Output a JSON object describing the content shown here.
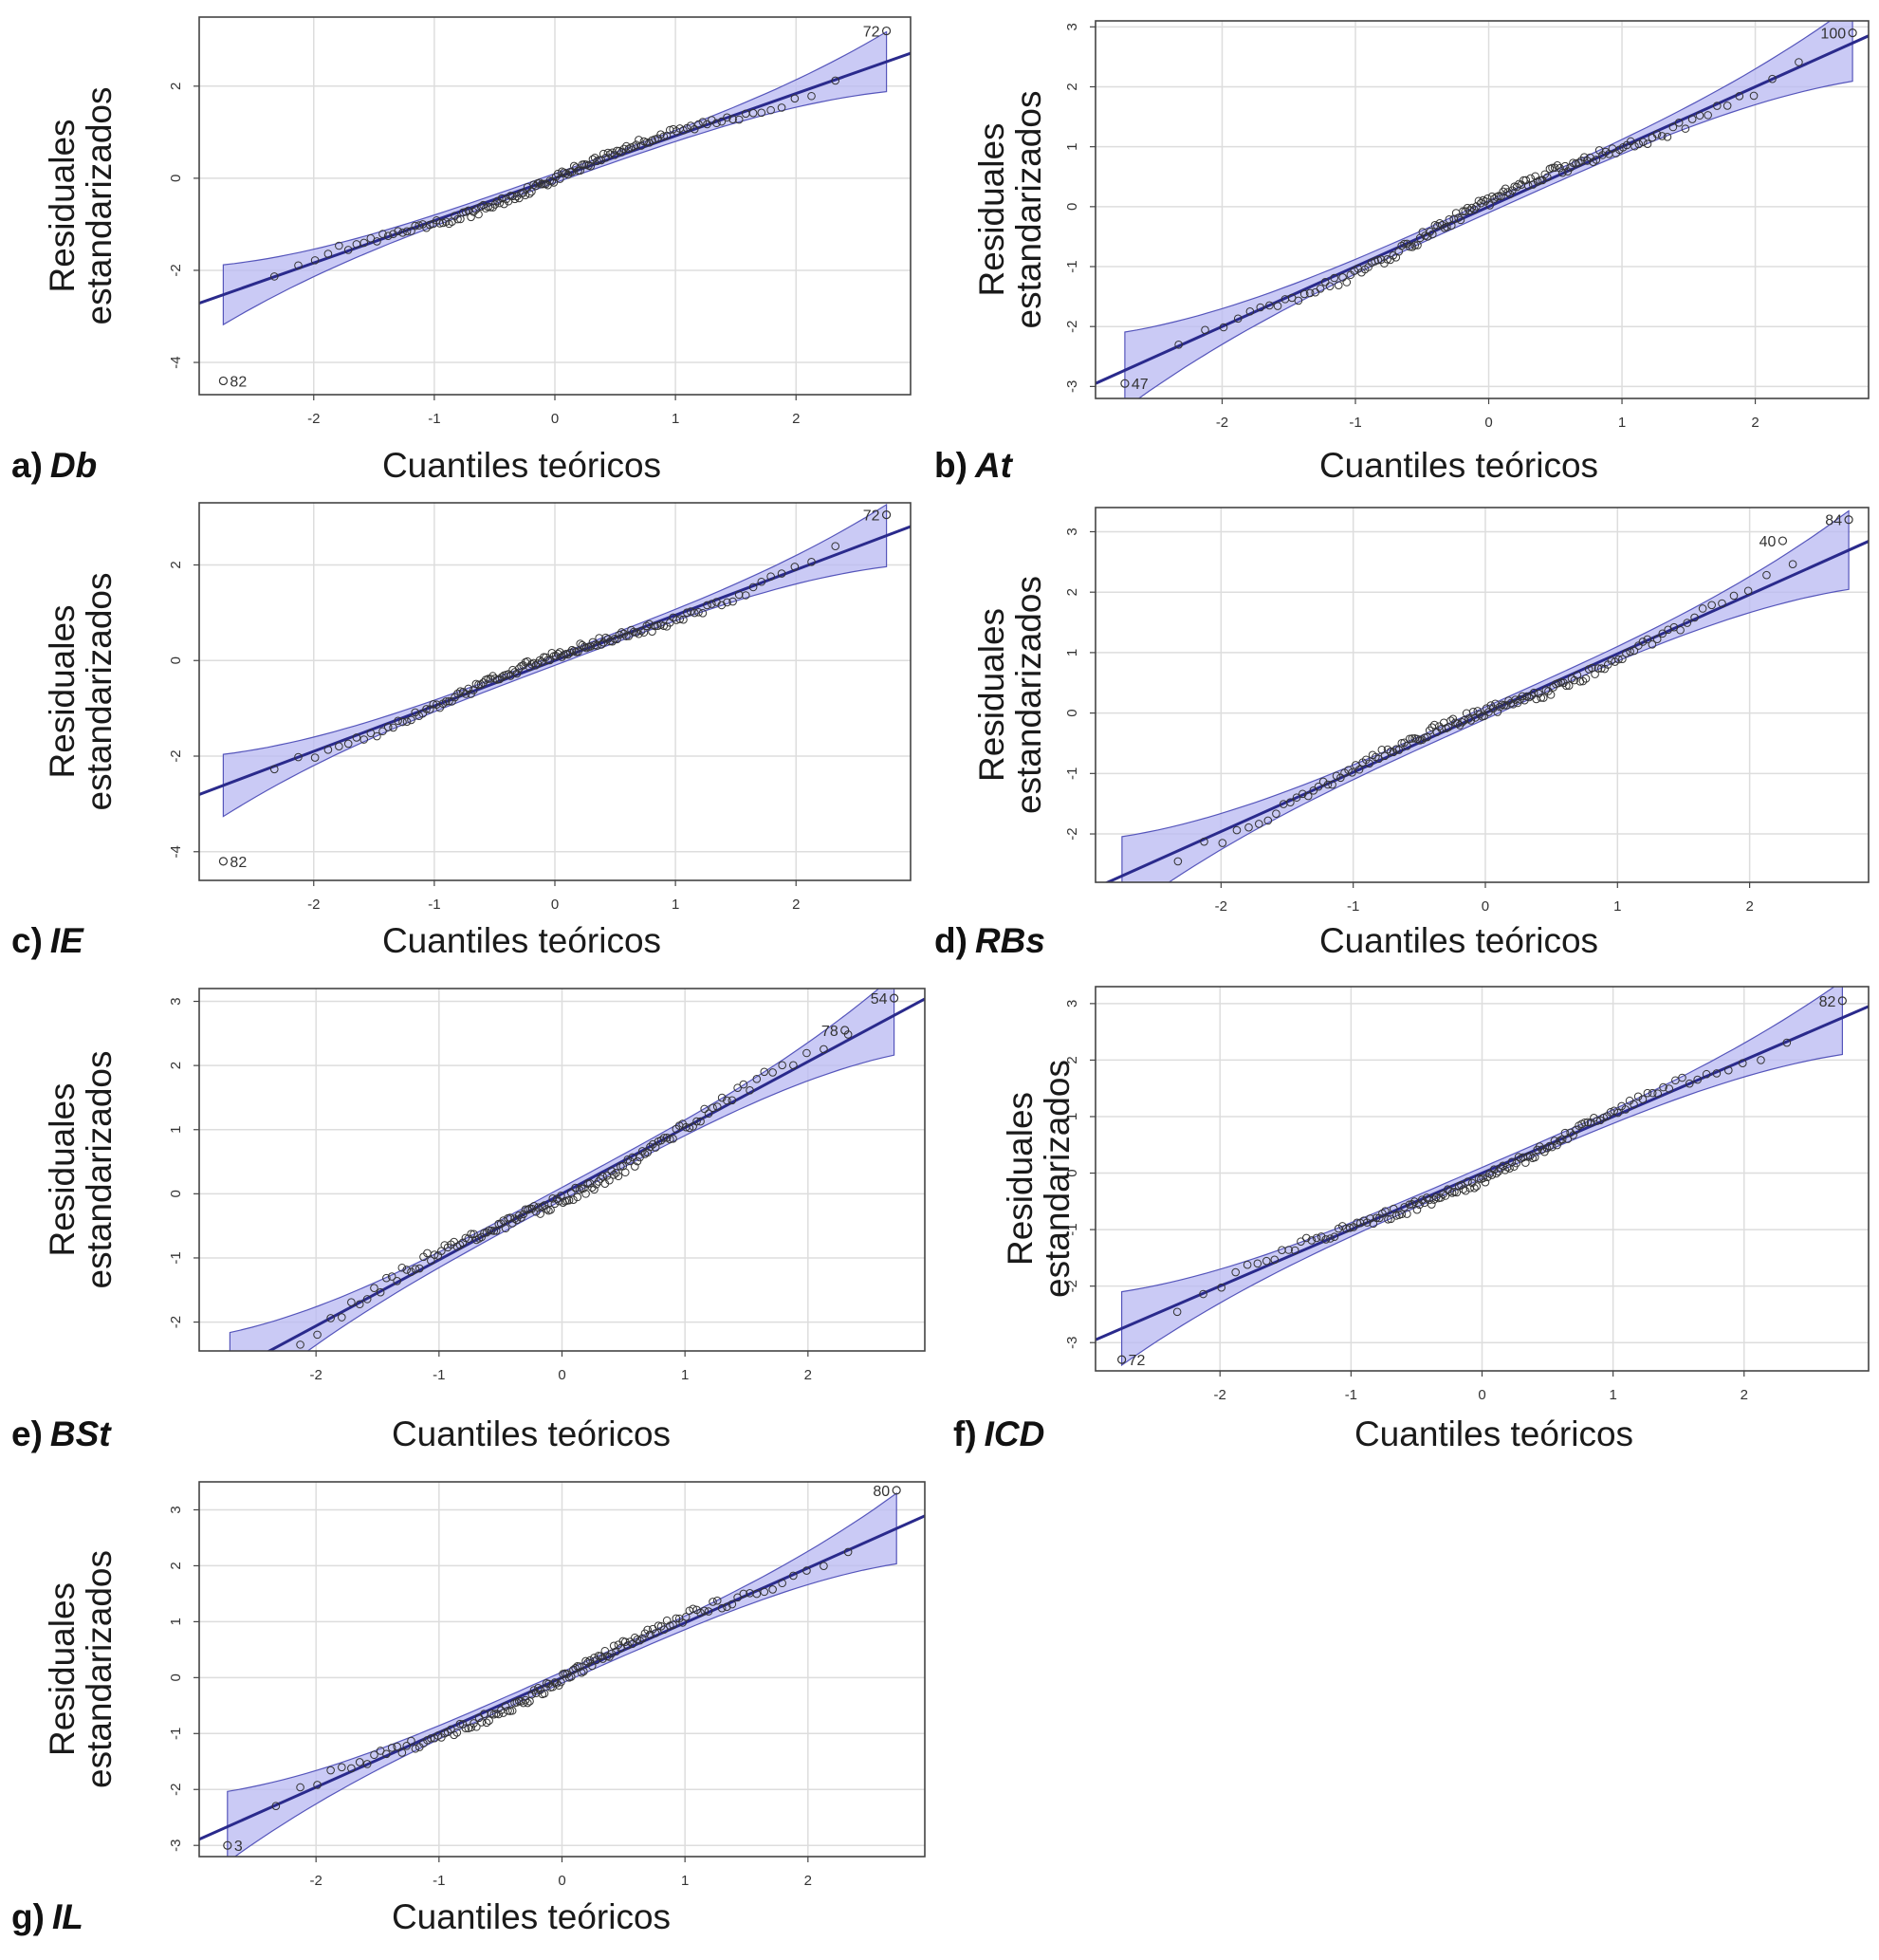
{
  "colors": {
    "band": "#b8b8f2",
    "band_edge": "#5555bb",
    "line": "#2a2a8c",
    "point": "#333333",
    "grid": "#dddddd",
    "frame": "#444444"
  },
  "chart_data": [
    {
      "type": "scatter",
      "panel_prefix": "a)",
      "panel_name": "Db",
      "xlabel": "Cuantiles teóricos",
      "ylabel": [
        "Residuales",
        "estandarizados"
      ],
      "xlim": [
        -2.95,
        2.95
      ],
      "ylim": [
        -4.7,
        3.5
      ],
      "xticks": [
        -2,
        -1,
        0,
        1,
        2
      ],
      "yticks": [
        -4,
        -2,
        0,
        2
      ],
      "ref_line": {
        "slope": 0.92,
        "intercept": 0.0
      },
      "outliers": [
        {
          "x": 2.75,
          "y": 3.2,
          "label": "72"
        },
        {
          "x": -2.75,
          "y": -4.4,
          "label": "82"
        }
      ]
    },
    {
      "type": "scatter",
      "panel_prefix": "b)",
      "panel_name": "At",
      "xlabel": "Cuantiles teóricos",
      "ylabel": [
        "Residuales",
        "estandarizados"
      ],
      "xlim": [
        -2.95,
        2.85
      ],
      "ylim": [
        -3.2,
        3.1
      ],
      "xticks": [
        -2,
        -1,
        0,
        1,
        2
      ],
      "yticks": [
        -3,
        -2,
        -1,
        0,
        1,
        2,
        3
      ],
      "ref_line": {
        "slope": 1.0,
        "intercept": 0.0
      },
      "outliers": [
        {
          "x": 2.73,
          "y": 2.9,
          "label": "100"
        },
        {
          "x": -2.73,
          "y": -2.95,
          "label": "47"
        }
      ]
    },
    {
      "type": "scatter",
      "panel_prefix": "c)",
      "panel_name": "IE",
      "xlabel": "Cuantiles teóricos",
      "ylabel": [
        "Residuales",
        "estandarizados"
      ],
      "xlim": [
        -2.95,
        2.95
      ],
      "ylim": [
        -4.6,
        3.3
      ],
      "xticks": [
        -2,
        -1,
        0,
        1,
        2
      ],
      "yticks": [
        -4,
        -2,
        0,
        2
      ],
      "ref_line": {
        "slope": 0.95,
        "intercept": 0.0
      },
      "outliers": [
        {
          "x": 2.75,
          "y": 3.05,
          "label": "72"
        },
        {
          "x": -2.75,
          "y": -4.2,
          "label": "82"
        }
      ]
    },
    {
      "type": "scatter",
      "panel_prefix": "d)",
      "panel_name": "RBs",
      "xlabel": "Cuantiles teóricos",
      "ylabel": [
        "Residuales",
        "estandarizados"
      ],
      "xlim": [
        -2.95,
        2.9
      ],
      "ylim": [
        -2.8,
        3.4
      ],
      "xticks": [
        -2,
        -1,
        0,
        1,
        2
      ],
      "yticks": [
        -2,
        -1,
        0,
        1,
        2,
        3
      ],
      "ref_line": {
        "slope": 0.98,
        "intercept": 0.0
      },
      "outliers": [
        {
          "x": 2.75,
          "y": 3.2,
          "label": "84"
        },
        {
          "x": 2.25,
          "y": 2.85,
          "label": "40"
        }
      ]
    },
    {
      "type": "scatter",
      "panel_prefix": "e)",
      "panel_name": "BSt",
      "xlabel": "Cuantiles teóricos",
      "ylabel": [
        "Residuales",
        "estandarizados"
      ],
      "xlim": [
        -2.95,
        2.95
      ],
      "ylim": [
        -2.45,
        3.2
      ],
      "xticks": [
        -2,
        -1,
        0,
        1,
        2
      ],
      "yticks": [
        -2,
        -1,
        0,
        1,
        2,
        3
      ],
      "ref_line": {
        "slope": 1.03,
        "intercept": 0.0
      },
      "outliers": [
        {
          "x": 2.7,
          "y": 3.05,
          "label": "54"
        },
        {
          "x": 2.3,
          "y": 2.55,
          "label": "78"
        }
      ]
    },
    {
      "type": "scatter",
      "panel_prefix": "f)",
      "panel_name": "ICD",
      "xlabel": "Cuantiles teóricos",
      "ylabel": [
        "Residuales",
        "estandarizados"
      ],
      "xlim": [
        -2.95,
        2.95
      ],
      "ylim": [
        -3.5,
        3.3
      ],
      "xticks": [
        -2,
        -1,
        0,
        1,
        2
      ],
      "yticks": [
        -3,
        -2,
        -1,
        0,
        1,
        2,
        3
      ],
      "ref_line": {
        "slope": 1.0,
        "intercept": 0.0
      },
      "outliers": [
        {
          "x": 2.75,
          "y": 3.05,
          "label": "82"
        },
        {
          "x": -2.75,
          "y": -3.3,
          "label": "72"
        }
      ]
    },
    {
      "type": "scatter",
      "panel_prefix": "g)",
      "panel_name": "IL",
      "xlabel": "Cuantiles teóricos",
      "ylabel": [
        "Residuales",
        "estandarizados"
      ],
      "xlim": [
        -2.95,
        2.95
      ],
      "ylim": [
        -3.2,
        3.5
      ],
      "xticks": [
        -2,
        -1,
        0,
        1,
        2
      ],
      "yticks": [
        -3,
        -2,
        -1,
        0,
        1,
        2,
        3
      ],
      "ref_line": {
        "slope": 0.98,
        "intercept": 0.0
      },
      "outliers": [
        {
          "x": 2.72,
          "y": 3.35,
          "label": "80"
        },
        {
          "x": -2.72,
          "y": -3.0,
          "label": "3"
        }
      ]
    }
  ]
}
